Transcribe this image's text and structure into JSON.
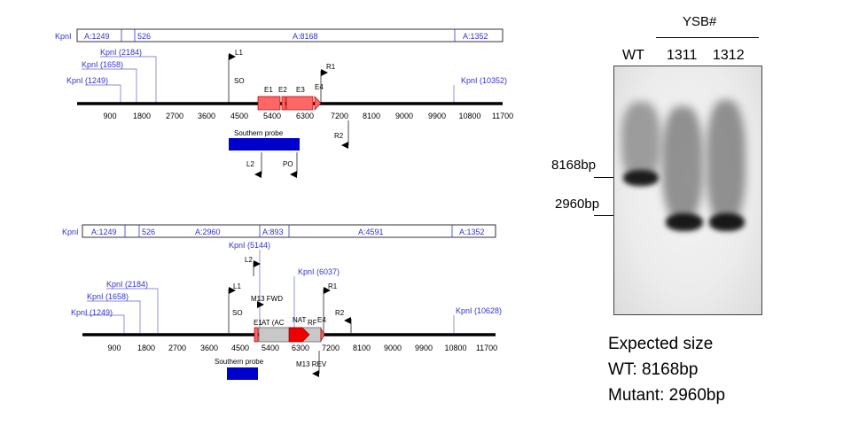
{
  "wt_map": {
    "fragments": [
      "KpnI",
      "A:1249",
      "526",
      "A:8168",
      "A:1352"
    ],
    "sites": [
      "KpnI (2184)",
      "KpnI (1658)",
      "KpnI (1249)",
      "KpnI (10352)"
    ],
    "primers": [
      "L1",
      "SO",
      "R1",
      "E4",
      "R2",
      "L2",
      "PO"
    ],
    "exons": [
      "E1",
      "E2",
      "E3"
    ],
    "ticks": [
      "900",
      "1800",
      "2700",
      "3600",
      "4500",
      "5400",
      "6300",
      "7200",
      "8100",
      "9000",
      "9900",
      "10800",
      "11700"
    ],
    "probe_label": "Southern probe"
  },
  "mut_map": {
    "fragments": [
      "KpnI",
      "A:1249",
      "526",
      "A:2960",
      "A:893",
      "A:4591",
      "A:1352"
    ],
    "sites": [
      "KpnI (5144)",
      "KpnI (6037)",
      "KpnI (2184)",
      "KpnI (1658)",
      "KpnI (1249)",
      "KpnI (10628)"
    ],
    "primers": [
      "L2",
      "L1",
      "M13 FWD",
      "R1",
      "SO",
      "R2",
      "M13 REV"
    ],
    "cassette": [
      "E1",
      "AT (AC",
      "NAT",
      "RF",
      "E4"
    ],
    "ticks": [
      "900",
      "1800",
      "2700",
      "3600",
      "4500",
      "5400",
      "6300",
      "7200",
      "8100",
      "9000",
      "9900",
      "10800",
      "11700"
    ],
    "probe_label": "Southern probe"
  },
  "blot": {
    "group_label": "YSB#",
    "lanes": [
      "WT",
      "1311",
      "1312"
    ],
    "size_markers": [
      "8168bp",
      "2960bp"
    ]
  },
  "expected": {
    "title": "Expected size",
    "wt": "WT: 8168bp",
    "mutant": "Mutant: 2960bp"
  },
  "colors": {
    "exon": "#ff6666",
    "probe": "#0000cc",
    "nat": "#ee0000",
    "map_blue": "#3333cc",
    "cassette": "#c8c8c8"
  }
}
